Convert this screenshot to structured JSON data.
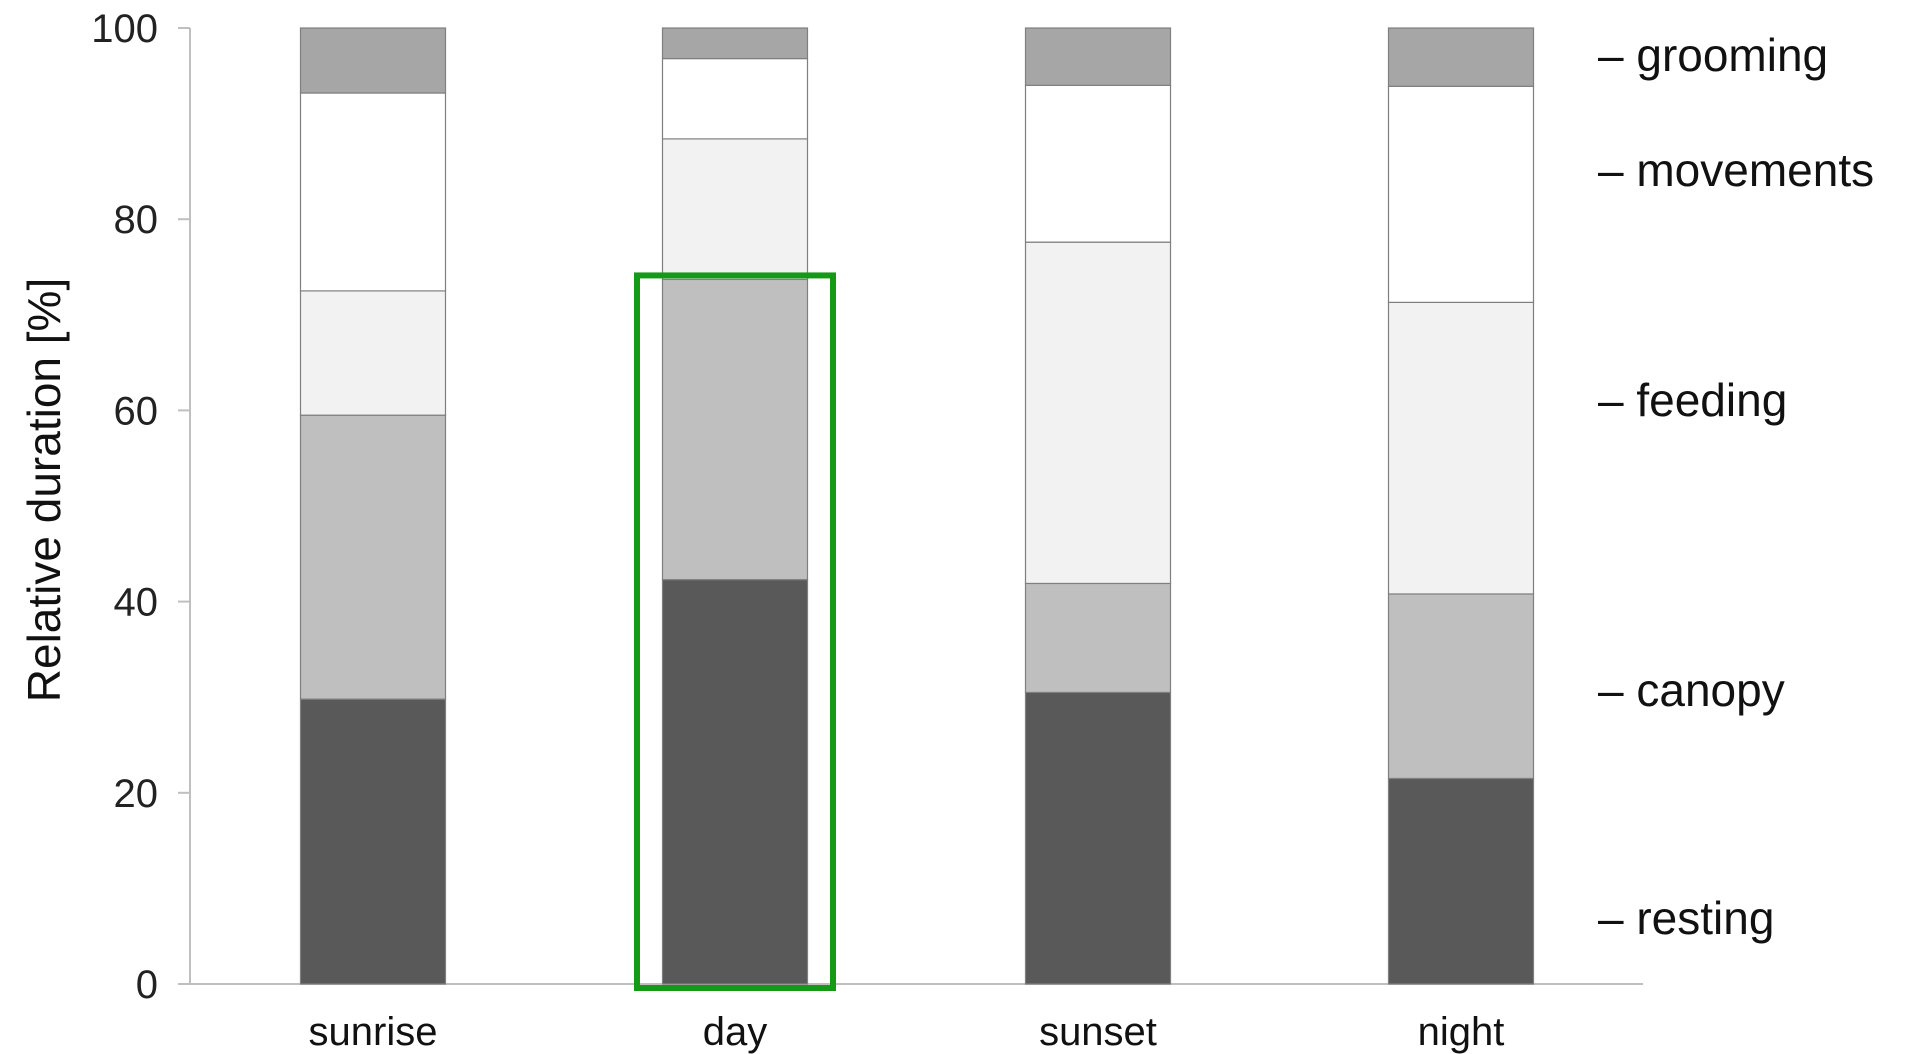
{
  "chart_data": {
    "type": "bar",
    "stacked": true,
    "title": "",
    "xlabel": "",
    "ylabel": "Relative duration [%]",
    "ylim": [
      0,
      100
    ],
    "yticks": [
      0,
      20,
      40,
      60,
      80,
      100
    ],
    "categories": [
      "sunrise",
      "day",
      "sunset",
      "night"
    ],
    "series": [
      {
        "name": "resting",
        "values": [
          29.8,
          42.3,
          30.5,
          21.5
        ],
        "color": "#595959"
      },
      {
        "name": "canopy",
        "values": [
          29.7,
          31.4,
          11.4,
          19.3
        ],
        "color": "#bfbfbf"
      },
      {
        "name": "feeding",
        "values": [
          13.0,
          14.7,
          35.7,
          30.5
        ],
        "color": "#f2f2f2"
      },
      {
        "name": "movements",
        "values": [
          20.7,
          8.4,
          16.4,
          22.6
        ],
        "color": "#ffffff"
      },
      {
        "name": "grooming",
        "values": [
          6.8,
          3.2,
          6.0,
          6.1
        ],
        "color": "#a6a6a6"
      }
    ],
    "legend_prefix": "–",
    "legend_position": "right",
    "grid": false,
    "highlight": {
      "category": "day",
      "color": "#159a15"
    }
  }
}
